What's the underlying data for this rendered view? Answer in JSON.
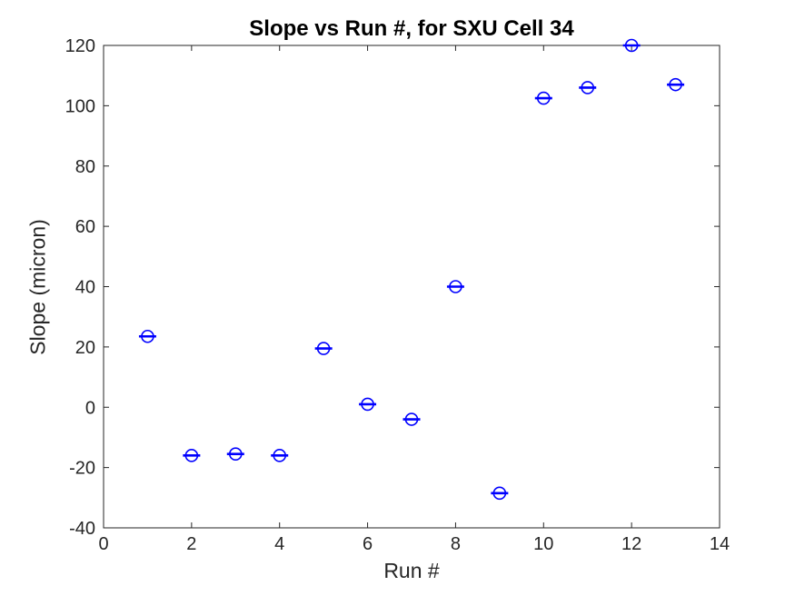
{
  "figure": {
    "background": "#ffffff",
    "axis_color": "#262626",
    "marker_color": "#0000ff"
  },
  "chart_data": {
    "type": "scatter",
    "title": "Slope vs Run #, for SXU Cell 34",
    "xlabel": "Run #",
    "ylabel": "Slope (micron)",
    "xlim": [
      0,
      14
    ],
    "ylim": [
      -40,
      120
    ],
    "xticks": [
      0,
      2,
      4,
      6,
      8,
      10,
      12,
      14
    ],
    "yticks": [
      -40,
      -20,
      0,
      20,
      40,
      60,
      80,
      100,
      120
    ],
    "grid": false,
    "legend": null,
    "box": true,
    "marker": {
      "shape": "open-circle-with-horizontal-errorbar-cap",
      "color": "#0000ff"
    },
    "series": [
      {
        "name": "slope",
        "x": [
          1,
          2,
          3,
          4,
          5,
          6,
          7,
          8,
          9,
          10,
          11,
          12,
          13
        ],
        "y": [
          23.5,
          -16,
          -15.5,
          -16,
          19.5,
          1,
          -4,
          40,
          -28.5,
          102.5,
          106,
          120,
          107
        ],
        "yerr": 0.5
      }
    ]
  }
}
